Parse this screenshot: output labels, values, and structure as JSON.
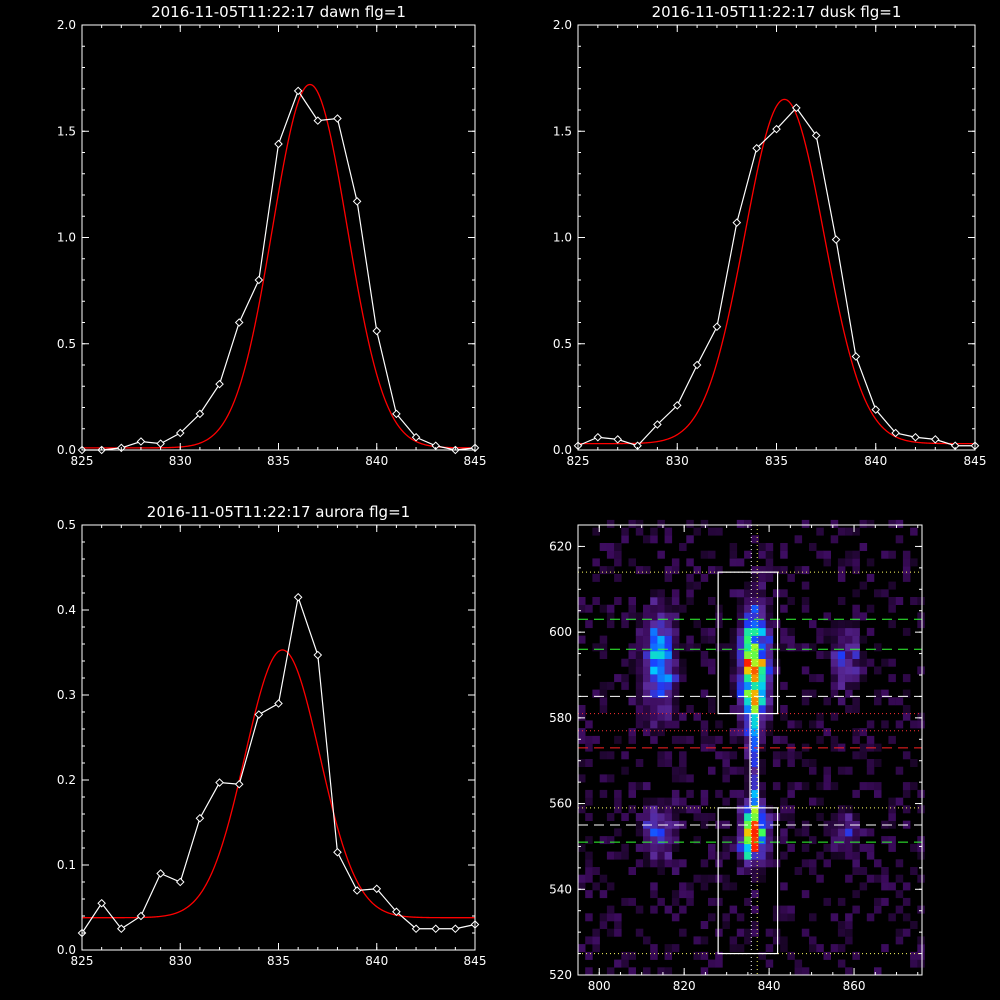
{
  "chart_data": [
    {
      "id": "dawn",
      "type": "line",
      "title": "2016-11-05T11:22:17 dawn flg=1",
      "xlim": [
        825,
        845
      ],
      "ylim": [
        0,
        2.0
      ],
      "xticks": [
        825,
        830,
        835,
        840,
        845
      ],
      "xtick_labels": [
        "825",
        "830",
        "835",
        "840",
        "845"
      ],
      "yticks": [
        0,
        0.5,
        1.0,
        1.5,
        2.0
      ],
      "ytick_labels": [
        "0.0",
        "0.5",
        "1.0",
        "1.5",
        "2.0"
      ],
      "colors": {
        "data": "#ffffff",
        "fit": "#ff0000",
        "axes": "#ffffff"
      },
      "series": [
        {
          "role": "data",
          "marker": "diamond",
          "x": [
            825,
            826,
            827,
            828,
            829,
            830,
            831,
            832,
            833,
            834,
            835,
            836,
            837,
            838,
            839,
            840,
            841,
            842,
            843,
            844,
            845
          ],
          "y": [
            0.0,
            0.0,
            0.01,
            0.04,
            0.03,
            0.08,
            0.17,
            0.31,
            0.6,
            0.8,
            1.44,
            1.69,
            1.55,
            1.56,
            1.17,
            0.56,
            0.17,
            0.06,
            0.02,
            0.0,
            0.01
          ]
        },
        {
          "role": "fit",
          "model": "gaussian",
          "amplitude": 1.71,
          "center": 836.6,
          "sigma": 1.9,
          "offset": 0.01
        }
      ]
    },
    {
      "id": "dusk",
      "type": "line",
      "title": "2016-11-05T11:22:17 dusk flg=1",
      "xlim": [
        825,
        845
      ],
      "ylim": [
        0,
        2.0
      ],
      "xticks": [
        825,
        830,
        835,
        840,
        845
      ],
      "xtick_labels": [
        "825",
        "830",
        "835",
        "840",
        "845"
      ],
      "yticks": [
        0,
        0.5,
        1.0,
        1.5,
        2.0
      ],
      "ytick_labels": [
        "0.0",
        "0.5",
        "1.0",
        "1.5",
        "2.0"
      ],
      "colors": {
        "data": "#ffffff",
        "fit": "#ff0000",
        "axes": "#ffffff"
      },
      "series": [
        {
          "role": "data",
          "marker": "diamond",
          "x": [
            825,
            826,
            827,
            828,
            829,
            830,
            831,
            832,
            833,
            834,
            835,
            836,
            837,
            838,
            839,
            840,
            841,
            842,
            843,
            844,
            845
          ],
          "y": [
            0.02,
            0.06,
            0.05,
            0.02,
            0.12,
            0.21,
            0.4,
            0.58,
            1.07,
            1.42,
            1.51,
            1.61,
            1.48,
            0.99,
            0.44,
            0.19,
            0.08,
            0.06,
            0.05,
            0.02,
            0.02
          ]
        },
        {
          "role": "fit",
          "model": "gaussian",
          "amplitude": 1.62,
          "center": 835.4,
          "sigma": 2.0,
          "offset": 0.03
        }
      ]
    },
    {
      "id": "aurora",
      "type": "line",
      "title": "2016-11-05T11:22:17 aurora flg=1",
      "xlim": [
        825,
        845
      ],
      "ylim": [
        0,
        0.5
      ],
      "xticks": [
        825,
        830,
        835,
        840,
        845
      ],
      "xtick_labels": [
        "825",
        "830",
        "835",
        "840",
        "845"
      ],
      "yticks": [
        0,
        0.1,
        0.2,
        0.3,
        0.4,
        0.5
      ],
      "ytick_labels": [
        "0.0",
        "0.1",
        "0.2",
        "0.3",
        "0.4",
        "0.5"
      ],
      "colors": {
        "data": "#ffffff",
        "fit": "#ff0000",
        "axes": "#ffffff"
      },
      "series": [
        {
          "role": "data",
          "marker": "diamond",
          "x": [
            825,
            826,
            827,
            828,
            829,
            830,
            831,
            832,
            833,
            834,
            835,
            836,
            837,
            838,
            839,
            840,
            841,
            842,
            843,
            844,
            845
          ],
          "y": [
            0.02,
            0.055,
            0.025,
            0.04,
            0.09,
            0.08,
            0.155,
            0.197,
            0.195,
            0.277,
            0.29,
            0.415,
            0.347,
            0.115,
            0.07,
            0.072,
            0.045,
            0.025,
            0.025,
            0.025,
            0.03
          ]
        },
        {
          "role": "fit",
          "model": "gaussian",
          "amplitude": 0.315,
          "center": 835.2,
          "sigma": 1.9,
          "offset": 0.038
        }
      ]
    },
    {
      "id": "detector-image",
      "type": "heatmap",
      "title": "",
      "xlim": [
        795,
        876
      ],
      "ylim": [
        520,
        625
      ],
      "xticks": [
        800,
        820,
        840,
        860
      ],
      "xtick_labels": [
        "800",
        "820",
        "840",
        "860"
      ],
      "yticks": [
        520,
        540,
        560,
        580,
        600,
        620
      ],
      "ytick_labels": [
        "520",
        "540",
        "560",
        "580",
        "600",
        "620"
      ],
      "colorscale": [
        "#000000",
        "#3a0a5a",
        "#5a2a9a",
        "#1a3cff",
        "#00c8ff",
        "#30ff60",
        "#f0f000",
        "#ff2000"
      ],
      "blobs": [
        {
          "x": 836.5,
          "y": 592,
          "sx": 2.2,
          "sy": 9,
          "amp": 1.0
        },
        {
          "x": 836.5,
          "y": 553,
          "sx": 2.2,
          "sy": 4.5,
          "amp": 0.95
        },
        {
          "x": 814,
          "y": 593,
          "sx": 2.8,
          "sy": 8,
          "amp": 0.55
        },
        {
          "x": 814,
          "y": 553,
          "sx": 2.5,
          "sy": 4.5,
          "amp": 0.4
        },
        {
          "x": 858,
          "y": 594,
          "sx": 2.5,
          "sy": 5,
          "amp": 0.3
        },
        {
          "x": 858,
          "y": 553,
          "sx": 2.2,
          "sy": 4,
          "amp": 0.22
        },
        {
          "x": 836.5,
          "y": 570,
          "sx": 0.9,
          "sy": 12,
          "amp": 0.28
        }
      ],
      "boxes": [
        {
          "x0": 828,
          "x1": 842,
          "y0": 581,
          "y1": 614,
          "color": "#ffffff"
        },
        {
          "x0": 828,
          "x1": 842,
          "y0": 525,
          "y1": 559,
          "color": "#ffffff"
        },
        {
          "x0": 835.5,
          "x1": 837.5,
          "y0": 559,
          "y1": 581,
          "color": "#ffffff"
        }
      ],
      "hlines": [
        {
          "y": 614,
          "color": "#ffff66",
          "style": "dotted"
        },
        {
          "y": 603,
          "color": "#33ff33",
          "style": "dashed"
        },
        {
          "y": 596,
          "color": "#33ff33",
          "style": "dashed"
        },
        {
          "y": 585,
          "color": "#ffffff",
          "style": "dashed"
        },
        {
          "y": 581,
          "color": "#ff3333",
          "style": "dotted"
        },
        {
          "y": 577,
          "color": "#ff3333",
          "style": "dotted"
        },
        {
          "y": 573,
          "color": "#ff2222",
          "style": "dashed"
        },
        {
          "y": 559,
          "color": "#ffff66",
          "style": "dotted"
        },
        {
          "y": 555,
          "color": "#ffffff",
          "style": "dashed"
        },
        {
          "y": 551,
          "color": "#33ff33",
          "style": "dashed"
        },
        {
          "y": 525,
          "color": "#ffff66",
          "style": "dotted"
        }
      ],
      "vlines": [
        {
          "x": 835.8,
          "color": "#ffffff",
          "style": "dotted"
        },
        {
          "x": 837.2,
          "color": "#ffff66",
          "style": "dotted"
        }
      ]
    }
  ]
}
